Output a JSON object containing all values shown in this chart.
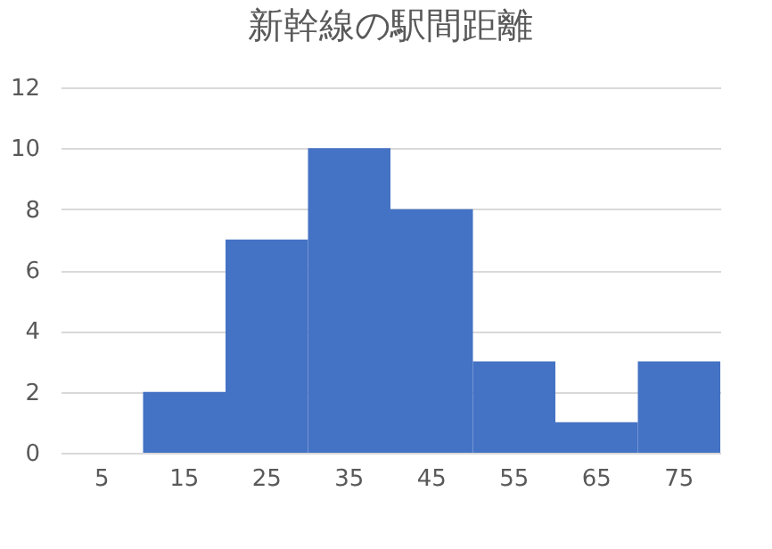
{
  "chart_data": {
    "type": "bar",
    "title": "新幹線の駅間距離",
    "categories": [
      "5",
      "15",
      "25",
      "35",
      "45",
      "55",
      "65",
      "75"
    ],
    "values": [
      0,
      2,
      7,
      10,
      8,
      3,
      1,
      3
    ],
    "color": "#4472c4",
    "ylim": [
      0,
      12
    ],
    "yticks": [
      0,
      2,
      4,
      6,
      8,
      10,
      12
    ],
    "grid": "y"
  }
}
